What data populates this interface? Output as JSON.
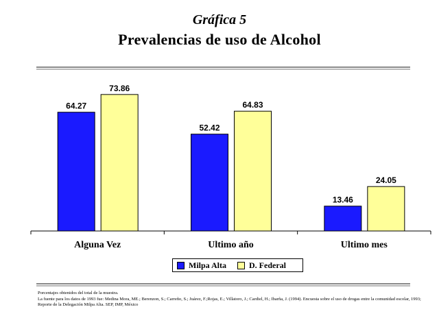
{
  "header": {
    "kicker": "Gráfica 5",
    "title": "Prevalencias de uso de Alcohol"
  },
  "chart_data": {
    "type": "bar",
    "categories": [
      "Alguna Vez",
      "Ultimo año",
      "Ultimo mes"
    ],
    "series": [
      {
        "name": "Milpa Alta",
        "values": [
          64.27,
          52.42,
          13.46
        ],
        "color": "#1a1aff"
      },
      {
        "name": "D. Federal",
        "values": [
          73.86,
          64.83,
          24.05
        ],
        "color": "#ffff99"
      }
    ],
    "value_labels": [
      [
        "64.27",
        "52.42",
        "13.46"
      ],
      [
        "73.86",
        "64.83",
        "24.05"
      ]
    ],
    "ylim": [
      0,
      80
    ],
    "grid": false,
    "legend_position": "bottom"
  },
  "footnotes": {
    "line1": "Porcentajes obtenidos del total de la muestra.",
    "line2": "La fuente para los datos de 1993 fue: Medina Mora, ME.; Berenzon, S.; Carreño, S.; Juárez, F.;Rojas, E.; Villatoro, J.; Cardiel, H.; Ibarña, J. (1994). Encuesta sobre el uso de drogas entre la comunidad escolar, 1993; Reporte de la Delegación Milpa Alta. SEP, IMP, México"
  }
}
